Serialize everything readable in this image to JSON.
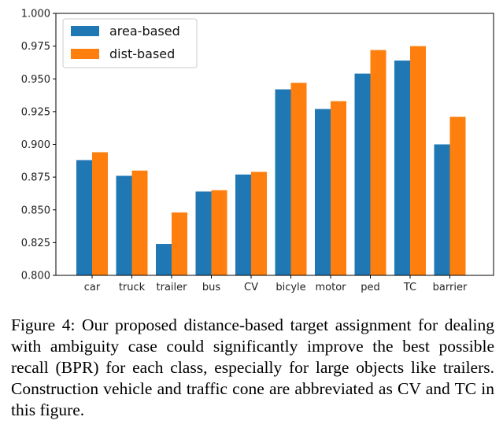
{
  "chart_data": {
    "type": "bar",
    "title": "",
    "xlabel": "",
    "ylabel": "",
    "ylim": [
      0.8,
      1.0
    ],
    "yticks": [
      "0.800",
      "0.825",
      "0.850",
      "0.875",
      "0.900",
      "0.925",
      "0.950",
      "0.975",
      "1.000"
    ],
    "categories": [
      "car",
      "truck",
      "trailer",
      "bus",
      "CV",
      "bicyle",
      "motor",
      "ped",
      "TC",
      "barrier"
    ],
    "series": [
      {
        "name": "area-based",
        "color": "#1f77b4",
        "values": [
          0.888,
          0.876,
          0.824,
          0.864,
          0.877,
          0.942,
          0.927,
          0.954,
          0.964,
          0.9
        ]
      },
      {
        "name": "dist-based",
        "color": "#ff7f0e",
        "values": [
          0.894,
          0.88,
          0.848,
          0.865,
          0.879,
          0.947,
          0.933,
          0.972,
          0.975,
          0.921
        ]
      }
    ],
    "legend_position": "upper-left",
    "grid": false
  },
  "caption": "Figure 4:  Our proposed distance-based target assignment for dealing with ambiguity case could significantly improve the best possible recall (BPR) for each class, especially for large objects like trailers.  Construction vehicle and traffic cone are abbreviated as CV and TC in this figure."
}
